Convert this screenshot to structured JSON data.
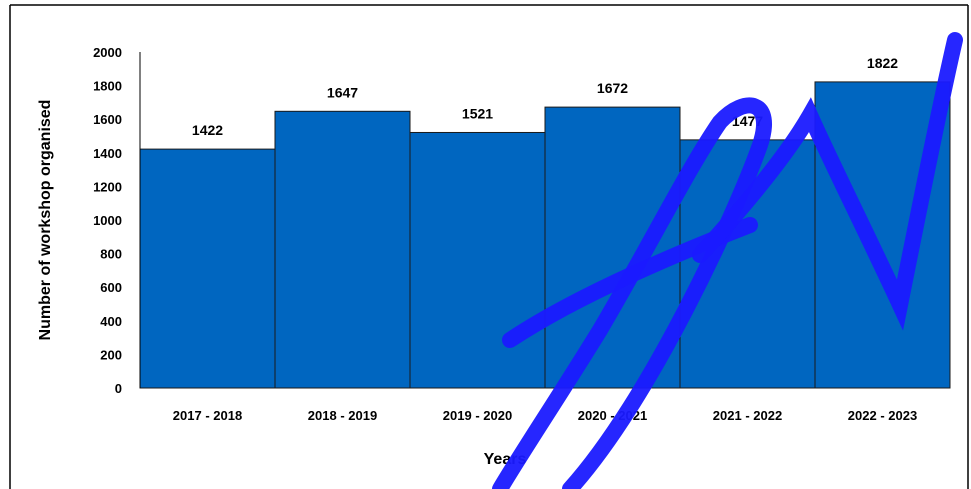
{
  "chart_data": {
    "type": "bar",
    "title": "",
    "xlabel": "Years",
    "ylabel": "Number of workshop organised",
    "categories": [
      "2017 - 2018",
      "2018 - 2019",
      "2019 - 2020",
      "2020 - 2021",
      "2021 - 2022",
      "2022 - 2023"
    ],
    "values": [
      1422,
      1647,
      1521,
      1672,
      1477,
      1822
    ],
    "data_labels": [
      "1422",
      "1647",
      "1521",
      "1672",
      "1477",
      "1822"
    ],
    "ylim": [
      0,
      2000
    ],
    "yticks": [
      "0",
      "200",
      "400",
      "600",
      "800",
      "1000",
      "1200",
      "1400",
      "1600",
      "1800",
      "2000"
    ],
    "grid": false,
    "legend": "none",
    "bar_color": "#0066c0",
    "bar_edge_color": "#1a1a1a",
    "watermark_color": "#1a1aff"
  }
}
